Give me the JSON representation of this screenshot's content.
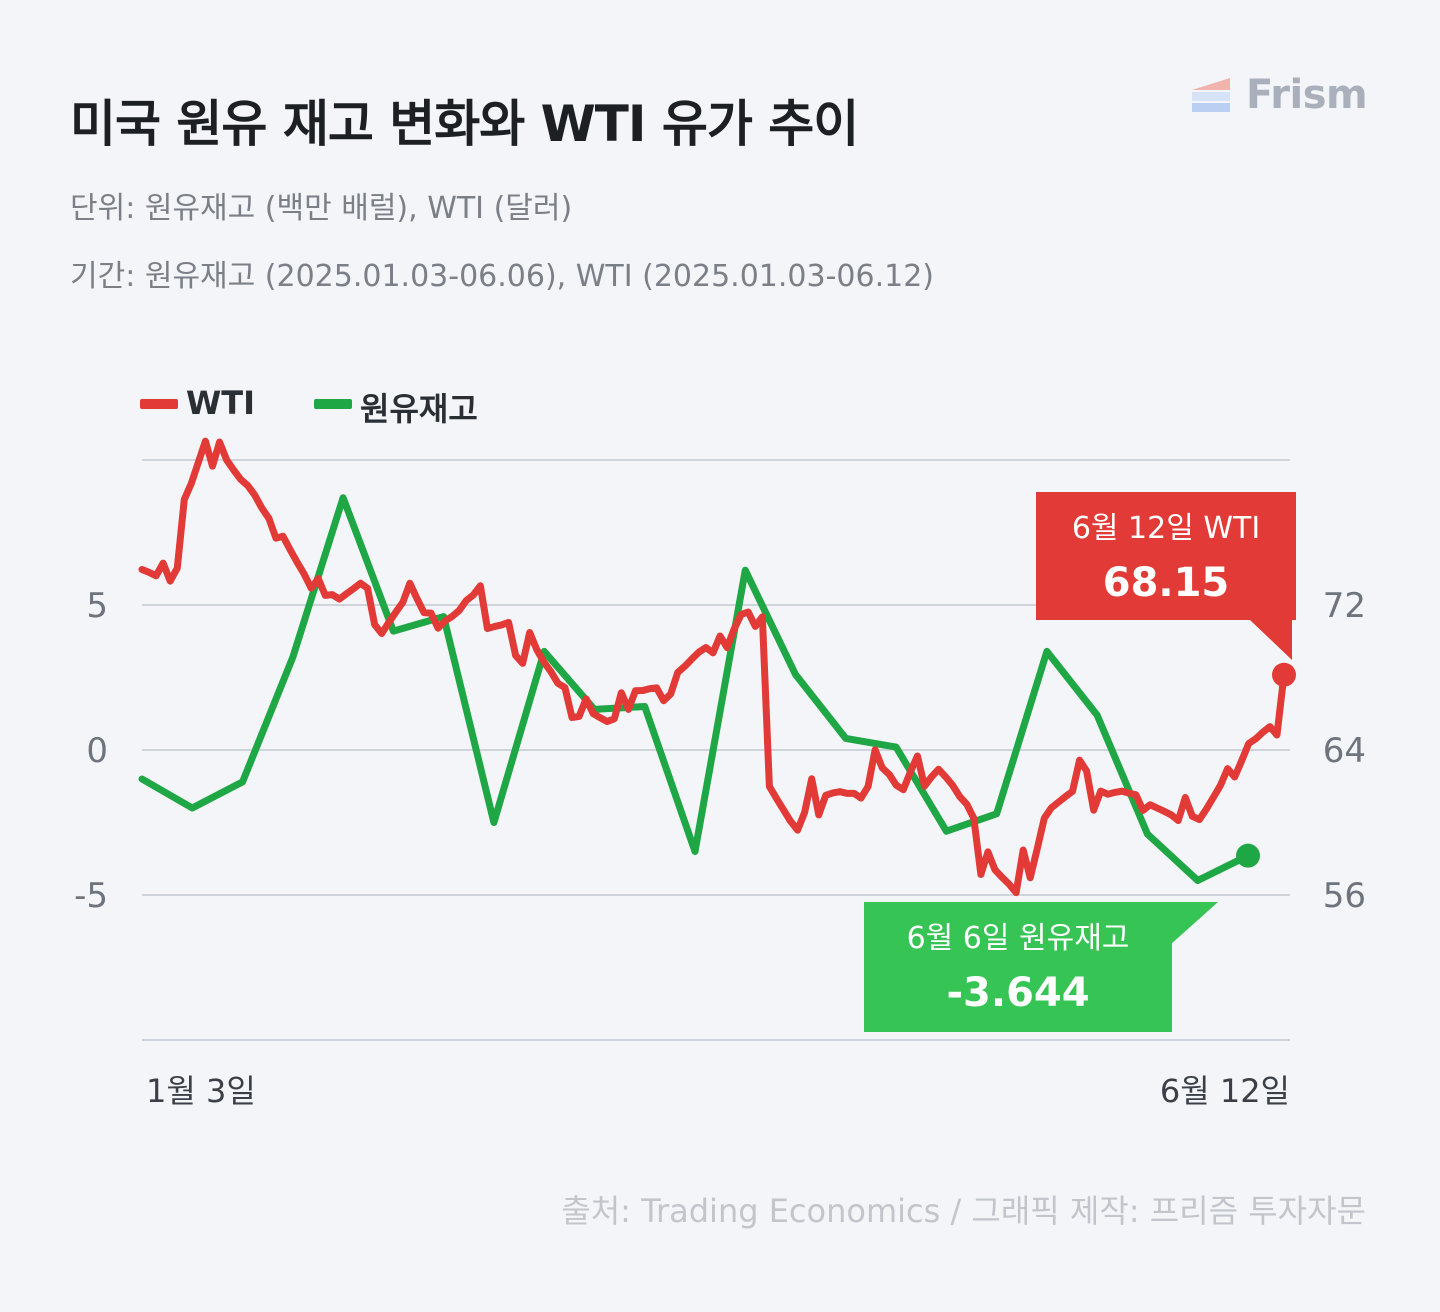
{
  "header": {
    "title": "미국 원유 재고 변화와 WTI 유가 추이",
    "subtitle_unit": "단위: 원유재고 (백만 배럴), WTI (달러)",
    "subtitle_period": "기간: 원유재고 (2025.01.03-06.06), WTI (2025.01.03-06.12)"
  },
  "logo": {
    "text": "Frism",
    "icon": "frism-logo-icon"
  },
  "legend": [
    {
      "label": "WTI",
      "color": "#e23a36"
    },
    {
      "label": "원유재고",
      "color": "#1fa745"
    }
  ],
  "source": "출처: Trading Economics / 그래픽 제작: 프리즘 투자자문",
  "chart_data": {
    "type": "line",
    "x_labels": [
      "1월 3일",
      "6월 12일"
    ],
    "left_axis": {
      "ticks": [
        "5",
        "0",
        "-5"
      ],
      "ylim": [
        -10,
        10
      ],
      "series": "원유재고"
    },
    "right_axis": {
      "ticks": [
        "72",
        "64",
        "56"
      ],
      "ylim": [
        48,
        80
      ],
      "series": "WTI"
    },
    "grid": true,
    "series": [
      {
        "name": "WTI",
        "color": "#e23a36",
        "axis": "right",
        "values": [
          73.96,
          73.8,
          73.61,
          74.31,
          73.32,
          74.03,
          77.82,
          78.71,
          79.88,
          81.04,
          79.66,
          80.99,
          80.01,
          79.45,
          78.93,
          78.59,
          78.06,
          77.35,
          76.78,
          75.69,
          75.79,
          75.06,
          74.36,
          73.71,
          72.93,
          73.46,
          72.53,
          72.57,
          72.33,
          72.62,
          72.9,
          73.2,
          72.92,
          70.92,
          70.43,
          71.03,
          71.6,
          72.15,
          73.2,
          72.36,
          71.58,
          71.55,
          70.72,
          71.12,
          71.37,
          71.7,
          72.25,
          72.55,
          73.06,
          70.7,
          70.81,
          70.9,
          71.04,
          69.22,
          68.78,
          70.48,
          69.54,
          68.86,
          68.33,
          67.68,
          67.44,
          65.79,
          65.85,
          66.82,
          66.01,
          65.78,
          65.57,
          65.72,
          67.16,
          66.24,
          67.27,
          67.28,
          67.38,
          67.43,
          66.72,
          67.09,
          68.28,
          68.62,
          69.02,
          69.4,
          69.65,
          69.36,
          70.29,
          69.65,
          70.68,
          71.48,
          71.61,
          70.82,
          71.35,
          61.99,
          61.33,
          60.7,
          60.07,
          59.58,
          60.56,
          62.41,
          60.42,
          61.5,
          61.63,
          61.7,
          61.61,
          61.61,
          61.35,
          61.99,
          64.01,
          63.02,
          62.65,
          62.06,
          61.81,
          62.79,
          63.67,
          62.01,
          62.52,
          62.94,
          62.52,
          62.05,
          61.43,
          61.01,
          60.23,
          57.13,
          58.38,
          57.39,
          56.98,
          56.6,
          56.13,
          58.48,
          56.95,
          58.56,
          60.24,
          60.81,
          61.12,
          61.43,
          61.72,
          63.44,
          62.84,
          60.68,
          61.73,
          61.56,
          61.66,
          61.73,
          61.62,
          61.53,
          60.67,
          60.98,
          60.8,
          60.62,
          60.42,
          60.11,
          61.38,
          60.34,
          60.16,
          60.75,
          61.4,
          62.06,
          62.97,
          62.51,
          63.41,
          64.36,
          64.62,
          64.98,
          65.29,
          64.83,
          68.15
        ]
      },
      {
        "name": "원유재고",
        "color": "#1fa745",
        "axis": "left",
        "values": [
          -1.0,
          -2.0,
          -1.1,
          3.2,
          8.7,
          4.1,
          4.6,
          -2.5,
          3.4,
          1.4,
          1.5,
          -3.5,
          6.2,
          2.6,
          0.4,
          0.1,
          -2.8,
          -2.2,
          3.4,
          1.2,
          -2.9,
          -4.5,
          -3.644
        ]
      }
    ],
    "callouts": [
      {
        "series": "WTI",
        "label": "6월 12일 WTI",
        "value": "68.15",
        "color": "#e23a36"
      },
      {
        "series": "원유재고",
        "label": "6월 6일 원유재고",
        "value": "-3.644",
        "color": "#36c455"
      }
    ]
  }
}
